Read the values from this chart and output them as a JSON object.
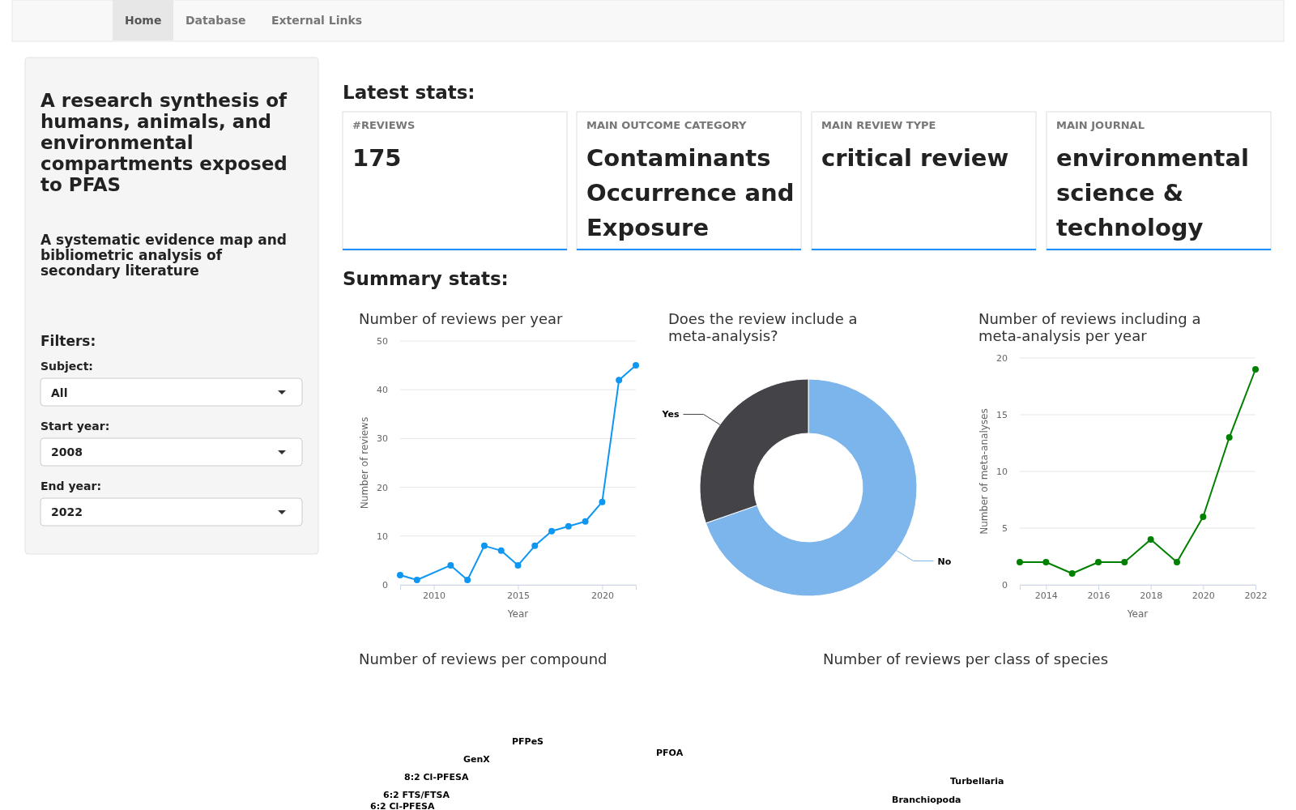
{
  "chart_data": [
    {
      "type": "other",
      "title": "A research synthesis of humans, animals, and environmental compartments exposed to PFAS",
      "subtitle": "A systematic evidence map and bibliometric analysis of secondary literature",
      "annotations": [
        "Home",
        "Database",
        "External Links",
        "Filters:",
        "Subject:",
        "All",
        "Start year:",
        "2008",
        "End year:",
        "2022"
      ]
    },
    {
      "type": "other",
      "title": "Latest stats:",
      "annotations": [
        "#REVIEWS",
        "175",
        "MAIN OUTCOME CATEGORY",
        "Contaminants Occurrence and Exposure",
        "MAIN REVIEW TYPE",
        "critical review",
        "MAIN JOURNAL",
        "environmental science & technology",
        "Summary stats:"
      ]
    },
    {
      "type": "line",
      "title": "Number of reviews per year",
      "xlabel": "Year",
      "ylabel": "Number of reviews",
      "x": [
        2008,
        2009,
        2011,
        2012,
        2013,
        2014,
        2015,
        2016,
        2017,
        2018,
        2019,
        2020,
        2021,
        2022
      ],
      "series": [
        {
          "color": "#0d96f2",
          "values": [
            2,
            1,
            4,
            1,
            8,
            7,
            4,
            8,
            11,
            12,
            13,
            17,
            42,
            45
          ]
        }
      ],
      "xlim": [
        2008,
        2022
      ],
      "xticks": [
        2010,
        2015,
        2020
      ],
      "ylim": [
        0,
        50
      ],
      "yticks": [
        0,
        10,
        20,
        30,
        40,
        50
      ],
      "grid": "y",
      "marker": "circle"
    },
    {
      "type": "donut",
      "title": "Does the review include a meta-analysis?",
      "categories": [
        "No",
        "Yes"
      ],
      "values": [
        69.7,
        30.3
      ],
      "colors": [
        "#7cb5ec",
        "#434348"
      ]
    },
    {
      "type": "line",
      "title": "Number of reviews including a meta-analysis per year",
      "xlabel": "Year",
      "ylabel": "Number of meta-analyses",
      "x": [
        2013,
        2014,
        2015,
        2016,
        2017,
        2018,
        2019,
        2020,
        2021,
        2022
      ],
      "series": [
        {
          "color": "#008000",
          "values": [
            2,
            2,
            1,
            2,
            2,
            4,
            2,
            6,
            13,
            19
          ]
        }
      ],
      "xlim": [
        2013,
        2022
      ],
      "xticks": [
        2014,
        2016,
        2018,
        2020,
        2022
      ],
      "ylim": [
        0,
        20
      ],
      "yticks": [
        0,
        5,
        10,
        15,
        20
      ],
      "grid": "y",
      "marker": "circle"
    },
    {
      "type": "other",
      "title": "Number of reviews per compound",
      "annotations": [
        "PFOA",
        "PFPeS",
        "GenX",
        "8:2 Cl-PFESA",
        "6:2 FTS/FTSA",
        "6:2 Cl-PFESA"
      ]
    },
    {
      "type": "other",
      "title": "Number of reviews per class of species",
      "annotations": [
        "Turbellaria",
        "Branchiopoda"
      ]
    }
  ]
}
